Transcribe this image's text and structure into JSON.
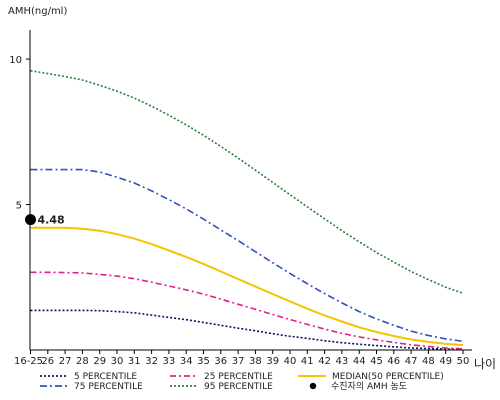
{
  "chart_data": {
    "type": "line",
    "title": "",
    "ylabel": "AMH(ng/ml)",
    "xlabel": "나이",
    "ylim": [
      0,
      11
    ],
    "yticks": [
      5,
      10
    ],
    "categories": [
      "16-25",
      "26",
      "27",
      "28",
      "29",
      "30",
      "31",
      "32",
      "33",
      "34",
      "35",
      "36",
      "37",
      "38",
      "39",
      "40",
      "41",
      "42",
      "43",
      "44",
      "45",
      "46",
      "47",
      "48",
      "49",
      "50"
    ],
    "series": [
      {
        "name": "5 PERCENTILE",
        "color": "#101060",
        "dash": "2,2",
        "values": [
          1.36,
          1.36,
          1.36,
          1.36,
          1.35,
          1.32,
          1.28,
          1.2,
          1.12,
          1.04,
          0.95,
          0.85,
          0.75,
          0.66,
          0.56,
          0.47,
          0.4,
          0.32,
          0.25,
          0.2,
          0.15,
          0.11,
          0.07,
          0.05,
          0.03,
          0.02
        ]
      },
      {
        "name": "25 PERCENTILE",
        "color": "#e0208a",
        "dash": "6,3,2,3",
        "values": [
          2.67,
          2.67,
          2.66,
          2.65,
          2.6,
          2.54,
          2.45,
          2.33,
          2.2,
          2.07,
          1.92,
          1.75,
          1.57,
          1.4,
          1.22,
          1.05,
          0.88,
          0.72,
          0.57,
          0.45,
          0.35,
          0.26,
          0.18,
          0.12,
          0.07,
          0.04
        ]
      },
      {
        "name": "MEDIAN(50 PERCENTILE)",
        "color": "#f2c500",
        "dash": "",
        "values": [
          4.2,
          4.2,
          4.2,
          4.17,
          4.1,
          3.98,
          3.83,
          3.64,
          3.42,
          3.2,
          2.96,
          2.7,
          2.44,
          2.18,
          1.92,
          1.67,
          1.42,
          1.19,
          0.98,
          0.78,
          0.62,
          0.48,
          0.36,
          0.28,
          0.21,
          0.17
        ]
      },
      {
        "name": "75 PERCENTILE",
        "color": "#3050c0",
        "dash": "7,3,2,3",
        "values": [
          6.2,
          6.2,
          6.2,
          6.2,
          6.12,
          5.94,
          5.74,
          5.47,
          5.17,
          4.85,
          4.5,
          4.13,
          3.76,
          3.38,
          3.0,
          2.63,
          2.28,
          1.94,
          1.62,
          1.32,
          1.07,
          0.85,
          0.65,
          0.5,
          0.38,
          0.3
        ]
      },
      {
        "name": "95 PERCENTILE",
        "color": "#2e7d3a",
        "dash": "2,2",
        "values": [
          9.6,
          9.5,
          9.4,
          9.28,
          9.1,
          8.9,
          8.66,
          8.38,
          8.07,
          7.74,
          7.38,
          7.0,
          6.6,
          6.18,
          5.76,
          5.34,
          4.92,
          4.51,
          4.1,
          3.72,
          3.35,
          3.02,
          2.7,
          2.42,
          2.16,
          1.95
        ]
      }
    ],
    "point": {
      "name": "수진자의 AMH 농도",
      "x": "16-25",
      "y": 4.48,
      "label": "4.48",
      "color": "#000000"
    },
    "legend_position": "bottom",
    "grid": false
  }
}
